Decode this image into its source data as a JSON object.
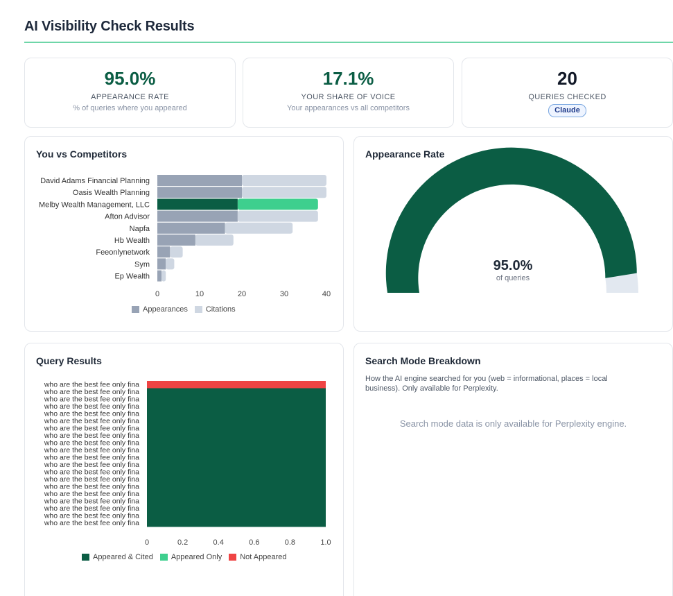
{
  "page_title": "AI Visibility Check Results",
  "stats": [
    {
      "value": "95.0%",
      "label": "APPEARANCE RATE",
      "sub": "% of queries where you appeared",
      "color": "#0b5d44"
    },
    {
      "value": "17.1%",
      "label": "YOUR SHARE OF VOICE",
      "sub": "Your appearances vs all competitors",
      "color": "#0b5d44"
    },
    {
      "value": "20",
      "label": "QUERIES CHECKED",
      "badge": "Claude",
      "color": "#111827"
    }
  ],
  "competitors": {
    "title": "You vs Competitors",
    "chart_data": {
      "type": "bar",
      "orientation": "horizontal",
      "stacked": true,
      "categories": [
        "David Adams Financial Planning",
        "Oasis Wealth Planning",
        "Melby Wealth Management, LLC",
        "Afton Advisor",
        "Napfa",
        "Hb Wealth",
        "Feeonlynetwork",
        "Sym",
        "Ep Wealth"
      ],
      "highlight": "Melby Wealth Management, LLC",
      "series": [
        {
          "name": "Appearances",
          "values": [
            20,
            20,
            19,
            19,
            16,
            9,
            3,
            2,
            1
          ]
        },
        {
          "name": "Citations",
          "values": [
            20,
            20,
            19,
            19,
            16,
            9,
            3,
            2,
            1
          ]
        }
      ],
      "xlim": [
        0,
        40
      ],
      "xticks": [
        0,
        10,
        20,
        30,
        40
      ],
      "legend": [
        "Appearances",
        "Citations"
      ],
      "colors": {
        "appearances": "#98a3b5",
        "citations": "#cfd7e2",
        "you_appearances": "#0b5d44",
        "you_citations": "#3ecf8e"
      }
    }
  },
  "gauge": {
    "title": "Appearance Rate",
    "value": 95.0,
    "value_label": "95.0%",
    "sub": "of queries",
    "colors": {
      "fill": "#0b5d44",
      "track": "#e2e8f0"
    }
  },
  "query_results": {
    "title": "Query Results",
    "chart_data": {
      "type": "bar",
      "orientation": "horizontal",
      "stacked": true,
      "categories": [
        "who are the best fee only fina",
        "who are the best fee only fina",
        "who are the best fee only fina",
        "who are the best fee only fina",
        "who are the best fee only fina",
        "who are the best fee only fina",
        "who are the best fee only fina",
        "who are the best fee only fina",
        "who are the best fee only fina",
        "who are the best fee only fina",
        "who are the best fee only fina",
        "who are the best fee only fina",
        "who are the best fee only fina",
        "who are the best fee only fina",
        "who are the best fee only fina",
        "who are the best fee only fina",
        "who are the best fee only fina",
        "who are the best fee only fina",
        "who are the best fee only fina",
        "who are the best fee only fina"
      ],
      "series": [
        {
          "name": "Appeared & Cited",
          "values": [
            0,
            1,
            1,
            1,
            1,
            1,
            1,
            1,
            1,
            1,
            1,
            1,
            1,
            1,
            1,
            1,
            1,
            1,
            1,
            1
          ]
        },
        {
          "name": "Appeared Only",
          "values": [
            0,
            0,
            0,
            0,
            0,
            0,
            0,
            0,
            0,
            0,
            0,
            0,
            0,
            0,
            0,
            0,
            0,
            0,
            0,
            0
          ]
        },
        {
          "name": "Not Appeared",
          "values": [
            1,
            0,
            0,
            0,
            0,
            0,
            0,
            0,
            0,
            0,
            0,
            0,
            0,
            0,
            0,
            0,
            0,
            0,
            0,
            0
          ]
        }
      ],
      "xlim": [
        0,
        1.0
      ],
      "xticks": [
        "0",
        "0.2",
        "0.4",
        "0.6",
        "0.8",
        "1.0"
      ],
      "legend": [
        "Appeared & Cited",
        "Appeared Only",
        "Not Appeared"
      ],
      "colors": [
        "#0b5d44",
        "#3ecf8e",
        "#ef4444"
      ]
    }
  },
  "search_mode": {
    "title": "Search Mode Breakdown",
    "description": "How the AI engine searched for you (web = informational, places = local business). Only available for Perplexity.",
    "empty_message": "Search mode data is only available for Perplexity engine."
  }
}
